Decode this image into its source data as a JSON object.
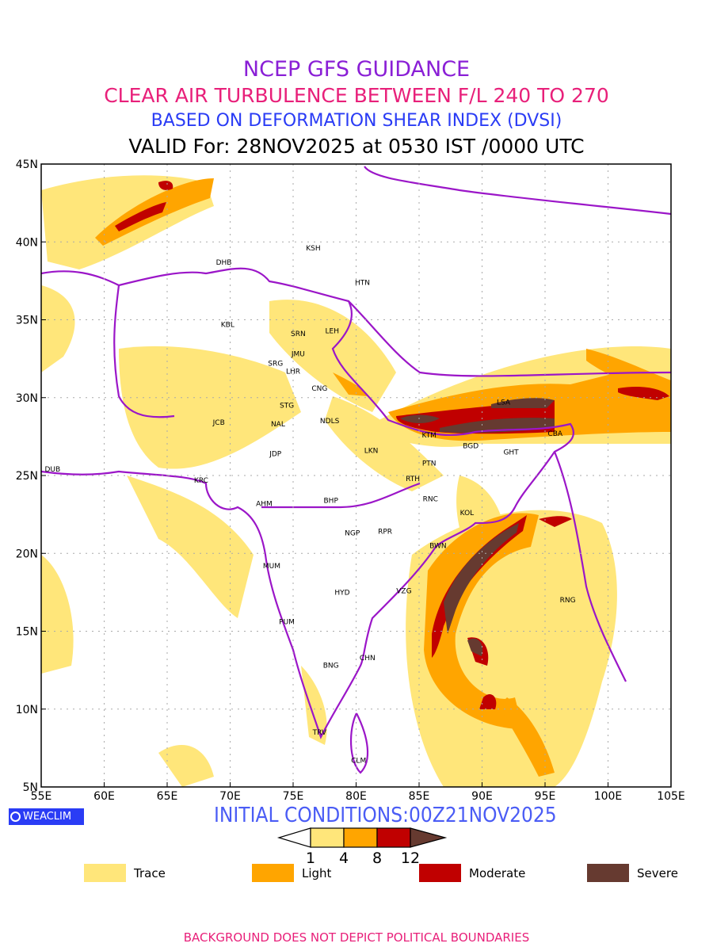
{
  "titles": {
    "line1": "NCEP GFS GUIDANCE",
    "line2": "CLEAR AIR TURBULENCE BETWEEN F/L 240 TO 270",
    "line3": "BASED ON DEFORMATION SHEAR INDEX (DVSI)",
    "line4": "VALID For: 28NOV2025 at 0530 IST /0000 UTC"
  },
  "initial_conditions": "INITIAL CONDITIONS:00Z21NOV2025",
  "logo": "WEACLIM",
  "map": {
    "lon_range": [
      55,
      105
    ],
    "lat_range": [
      5,
      45
    ],
    "lon_ticks": [
      "55E",
      "60E",
      "65E",
      "70E",
      "75E",
      "80E",
      "85E",
      "90E",
      "95E",
      "100E",
      "105E"
    ],
    "lat_ticks": [
      "5N",
      "10N",
      "15N",
      "20N",
      "25N",
      "30N",
      "35N",
      "40N",
      "45N"
    ],
    "stations": [
      {
        "code": "KSH",
        "lon": 76.6,
        "lat": 39.6
      },
      {
        "code": "DHB",
        "lon": 69.5,
        "lat": 38.7
      },
      {
        "code": "HTN",
        "lon": 80.5,
        "lat": 37.4
      },
      {
        "code": "KBL",
        "lon": 69.8,
        "lat": 34.7
      },
      {
        "code": "SRN",
        "lon": 75.4,
        "lat": 34.1
      },
      {
        "code": "LEH",
        "lon": 78.1,
        "lat": 34.3
      },
      {
        "code": "JMU",
        "lon": 75.4,
        "lat": 32.8
      },
      {
        "code": "SRG",
        "lon": 73.6,
        "lat": 32.2
      },
      {
        "code": "LHR",
        "lon": 75.0,
        "lat": 31.7
      },
      {
        "code": "CNG",
        "lon": 77.1,
        "lat": 30.6
      },
      {
        "code": "STG",
        "lon": 74.5,
        "lat": 29.5
      },
      {
        "code": "JCB",
        "lon": 69.1,
        "lat": 28.4
      },
      {
        "code": "NAL",
        "lon": 73.8,
        "lat": 28.3
      },
      {
        "code": "NDLS",
        "lon": 77.9,
        "lat": 28.5
      },
      {
        "code": "LSA",
        "lon": 91.7,
        "lat": 29.7
      },
      {
        "code": "KTM",
        "lon": 85.8,
        "lat": 27.6
      },
      {
        "code": "CBA",
        "lon": 95.8,
        "lat": 27.7
      },
      {
        "code": "BGD",
        "lon": 89.1,
        "lat": 26.9
      },
      {
        "code": "GHT",
        "lon": 92.3,
        "lat": 26.5
      },
      {
        "code": "JDP",
        "lon": 73.6,
        "lat": 26.4
      },
      {
        "code": "LKN",
        "lon": 81.2,
        "lat": 26.6
      },
      {
        "code": "PTN",
        "lon": 85.8,
        "lat": 25.8
      },
      {
        "code": "DUB",
        "lon": 55.9,
        "lat": 25.4
      },
      {
        "code": "RTH",
        "lon": 84.5,
        "lat": 24.8
      },
      {
        "code": "KRC",
        "lon": 67.7,
        "lat": 24.7
      },
      {
        "code": "RNC",
        "lon": 85.9,
        "lat": 23.5
      },
      {
        "code": "BHP",
        "lon": 78.0,
        "lat": 23.4
      },
      {
        "code": "AHM",
        "lon": 72.7,
        "lat": 23.2
      },
      {
        "code": "KOL",
        "lon": 88.8,
        "lat": 22.6
      },
      {
        "code": "NGP",
        "lon": 79.7,
        "lat": 21.3
      },
      {
        "code": "RPR",
        "lon": 82.3,
        "lat": 21.4
      },
      {
        "code": "BWN",
        "lon": 86.5,
        "lat": 20.5
      },
      {
        "code": "MUM",
        "lon": 73.3,
        "lat": 19.2
      },
      {
        "code": "HYD",
        "lon": 78.9,
        "lat": 17.5
      },
      {
        "code": "VZG",
        "lon": 83.8,
        "lat": 17.6
      },
      {
        "code": "RNG",
        "lon": 96.8,
        "lat": 17.0
      },
      {
        "code": "PUM",
        "lon": 74.5,
        "lat": 15.6
      },
      {
        "code": "CHN",
        "lon": 80.9,
        "lat": 13.3
      },
      {
        "code": "BNG",
        "lon": 78.0,
        "lat": 12.8
      },
      {
        "code": "TRV",
        "lon": 77.1,
        "lat": 8.5
      },
      {
        "code": "CLM",
        "lon": 80.2,
        "lat": 6.7
      }
    ]
  },
  "colorbar": {
    "ticks": [
      "1",
      "4",
      "8",
      "12"
    ],
    "colors": [
      "#ffe67a",
      "#ffa500",
      "#c00000",
      "#663a30"
    ]
  },
  "legend": [
    {
      "label": "Trace",
      "color": "#ffe67a"
    },
    {
      "label": "Light",
      "color": "#ffa500"
    },
    {
      "label": "Moderate",
      "color": "#c00000"
    },
    {
      "label": "Severe",
      "color": "#663a30"
    }
  ],
  "footer": "BACKGROUND DOES NOT DEPICT POLITICAL BOUNDARIES"
}
